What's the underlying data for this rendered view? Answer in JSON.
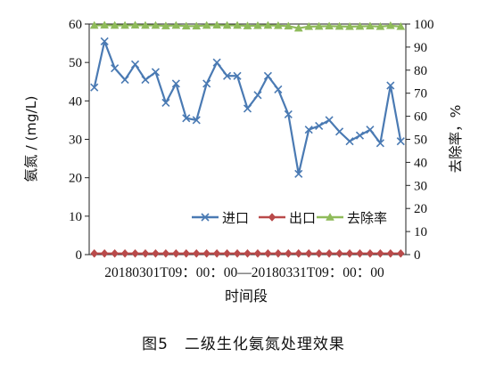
{
  "chart_data": {
    "type": "line",
    "caption": "图5　二级生化氨氮处理效果",
    "xlabel": "时间段",
    "x_range_label": "20180301T09：00：00—20180331T09：00：00",
    "ylabel_left": "氨氮 / (mg/L)",
    "ylabel_right": "去除率，%",
    "ylim_left": [
      0,
      60
    ],
    "ylim_right": [
      0,
      100
    ],
    "yticks_left": [
      "0",
      "10",
      "20",
      "30",
      "40",
      "50",
      "60"
    ],
    "yticks_right": [
      "0",
      "10",
      "20",
      "30",
      "40",
      "50",
      "60",
      "70",
      "80",
      "90",
      "100"
    ],
    "grid": false,
    "legend_position": "bottom-right",
    "series": [
      {
        "name": "进口",
        "axis": "left",
        "color": "#4a7ab3",
        "marker": "x",
        "values": [
          43.5,
          55.5,
          48.5,
          45.5,
          49.5,
          45.5,
          47.5,
          39.5,
          44.5,
          35.5,
          35.0,
          44.5,
          50.0,
          46.5,
          46.5,
          38.0,
          41.5,
          46.5,
          43.0,
          36.5,
          21.0,
          32.5,
          33.5,
          35.0,
          32.0,
          29.5,
          31.0,
          32.5,
          29.0,
          44.0,
          29.5
        ]
      },
      {
        "name": "出口",
        "axis": "left",
        "color": "#b94a4a",
        "marker": "diamond",
        "values": [
          0.3,
          0.3,
          0.3,
          0.3,
          0.3,
          0.3,
          0.3,
          0.3,
          0.3,
          0.3,
          0.3,
          0.3,
          0.3,
          0.3,
          0.3,
          0.3,
          0.3,
          0.3,
          0.3,
          0.3,
          0.3,
          0.3,
          0.3,
          0.3,
          0.3,
          0.3,
          0.3,
          0.3,
          0.3,
          0.3,
          0.3
        ]
      },
      {
        "name": "去除率",
        "axis": "right",
        "color": "#8fbb5a",
        "marker": "triangle",
        "values": [
          99.4,
          99.5,
          99.4,
          99.4,
          99.5,
          99.4,
          99.4,
          99.2,
          99.4,
          99.1,
          99.1,
          99.4,
          99.5,
          99.4,
          99.4,
          99.2,
          99.3,
          99.4,
          99.3,
          99.1,
          98.2,
          98.9,
          99.0,
          99.1,
          99.0,
          98.9,
          99.0,
          99.1,
          98.9,
          99.3,
          98.9
        ]
      }
    ]
  }
}
